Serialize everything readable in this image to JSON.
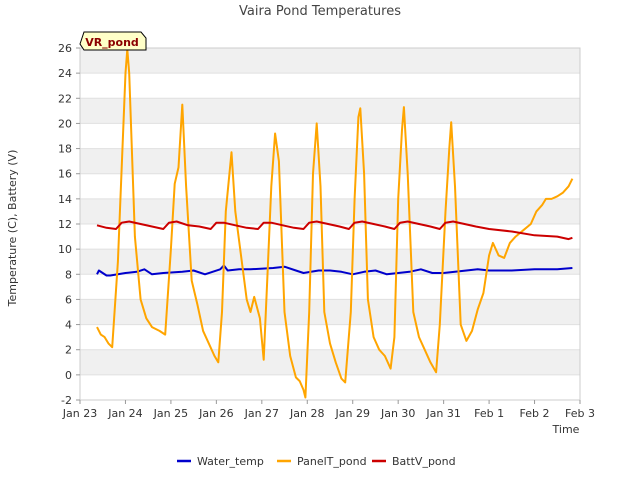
{
  "chart_data": {
    "type": "line",
    "title": "Vaira Pond Temperatures",
    "xlabel": "Time",
    "ylabel": "Temperature (C), Battery (V)",
    "annotation": "VR_pond",
    "xlim": [
      "Jan 23",
      "Feb 3"
    ],
    "ylim": [
      -2,
      26
    ],
    "x_tick_labels": [
      "Jan 23",
      "Jan 24",
      "Jan 25",
      "Jan 26",
      "Jan 27",
      "Jan 28",
      "Jan 29",
      "Jan 30",
      "Jan 31",
      "Feb 1",
      "Feb 2",
      "Feb 3"
    ],
    "y_ticks": [
      -2,
      0,
      2,
      4,
      6,
      8,
      10,
      12,
      14,
      16,
      18,
      20,
      22,
      24,
      26
    ],
    "grid": "horizontal bands",
    "legend_position": "bottom",
    "series": [
      {
        "name": "Water_temp",
        "color": "#0000cc",
        "points": [
          [
            "Jan 23 09:00",
            8.0
          ],
          [
            "Jan 23 10:00",
            8.3
          ],
          [
            "Jan 23 12:00",
            8.1
          ],
          [
            "Jan 23 14:00",
            7.9
          ],
          [
            "Jan 23 16:00",
            7.9
          ],
          [
            "Jan 23 20:00",
            8.0
          ],
          [
            "Jan 24 00:00",
            8.1
          ],
          [
            "Jan 24 06:00",
            8.2
          ],
          [
            "Jan 24 10:00",
            8.4
          ],
          [
            "Jan 24 14:00",
            8.0
          ],
          [
            "Jan 24 20:00",
            8.1
          ],
          [
            "Jan 25 06:00",
            8.2
          ],
          [
            "Jan 25 12:00",
            8.3
          ],
          [
            "Jan 25 18:00",
            8.0
          ],
          [
            "Jan 25 22:00",
            8.2
          ],
          [
            "Jan 26 02:00",
            8.4
          ],
          [
            "Jan 26 04:00",
            8.7
          ],
          [
            "Jan 26 06:00",
            8.3
          ],
          [
            "Jan 26 12:00",
            8.4
          ],
          [
            "Jan 26 18:00",
            8.4
          ],
          [
            "Jan 27 06:00",
            8.5
          ],
          [
            "Jan 27 12:00",
            8.6
          ],
          [
            "Jan 27 18:00",
            8.3
          ],
          [
            "Jan 27 22:00",
            8.1
          ],
          [
            "Jan 28 06:00",
            8.3
          ],
          [
            "Jan 28 12:00",
            8.3
          ],
          [
            "Jan 28 18:00",
            8.2
          ],
          [
            "Jan 29 00:00",
            8.0
          ],
          [
            "Jan 29 06:00",
            8.2
          ],
          [
            "Jan 29 12:00",
            8.3
          ],
          [
            "Jan 29 18:00",
            8.0
          ],
          [
            "Jan 30 00:00",
            8.1
          ],
          [
            "Jan 30 06:00",
            8.2
          ],
          [
            "Jan 30 12:00",
            8.4
          ],
          [
            "Jan 30 18:00",
            8.1
          ],
          [
            "Jan 31 00:00",
            8.1
          ],
          [
            "Jan 31 06:00",
            8.2
          ],
          [
            "Jan 31 12:00",
            8.3
          ],
          [
            "Jan 31 18:00",
            8.4
          ],
          [
            "Feb 1 00:00",
            8.3
          ],
          [
            "Feb 1 12:00",
            8.3
          ],
          [
            "Feb 2 00:00",
            8.4
          ],
          [
            "Feb 2 12:00",
            8.4
          ],
          [
            "Feb 2 20:00",
            8.5
          ]
        ]
      },
      {
        "name": "PanelT_pond",
        "color": "#ffa500",
        "points": [
          [
            "Jan 23 09:00",
            3.8
          ],
          [
            "Jan 23 11:00",
            3.2
          ],
          [
            "Jan 23 13:00",
            3.0
          ],
          [
            "Jan 23 15:00",
            2.5
          ],
          [
            "Jan 23 17:00",
            2.2
          ],
          [
            "Jan 23 20:00",
            9.0
          ],
          [
            "Jan 24 00:00",
            24.0
          ],
          [
            "Jan 24 01:00",
            25.9
          ],
          [
            "Jan 24 02:00",
            24.0
          ],
          [
            "Jan 24 05:00",
            11.0
          ],
          [
            "Jan 24 08:00",
            6.0
          ],
          [
            "Jan 24 11:00",
            4.5
          ],
          [
            "Jan 24 14:00",
            3.8
          ],
          [
            "Jan 24 18:00",
            3.5
          ],
          [
            "Jan 24 21:00",
            3.2
          ],
          [
            "Jan 25 00:00",
            10.0
          ],
          [
            "Jan 25 02:00",
            15.2
          ],
          [
            "Jan 25 04:00",
            16.5
          ],
          [
            "Jan 25 06:00",
            21.5
          ],
          [
            "Jan 25 08:00",
            15.0
          ],
          [
            "Jan 25 11:00",
            7.5
          ],
          [
            "Jan 25 14:00",
            5.6
          ],
          [
            "Jan 25 17:00",
            3.5
          ],
          [
            "Jan 25 20:00",
            2.5
          ],
          [
            "Jan 25 23:00",
            1.5
          ],
          [
            "Jan 26 01:00",
            1.0
          ],
          [
            "Jan 26 03:00",
            5.0
          ],
          [
            "Jan 26 05:00",
            13.0
          ],
          [
            "Jan 26 08:00",
            17.7
          ],
          [
            "Jan 26 10:00",
            13.0
          ],
          [
            "Jan 26 13:00",
            9.5
          ],
          [
            "Jan 26 16:00",
            6.0
          ],
          [
            "Jan 26 18:00",
            5.0
          ],
          [
            "Jan 26 20:00",
            6.2
          ],
          [
            "Jan 26 23:00",
            4.5
          ],
          [
            "Jan 27 01:00",
            1.2
          ],
          [
            "Jan 27 03:00",
            8.0
          ],
          [
            "Jan 27 05:00",
            15.0
          ],
          [
            "Jan 27 07:00",
            19.2
          ],
          [
            "Jan 27 09:00",
            17.0
          ],
          [
            "Jan 27 12:00",
            5.0
          ],
          [
            "Jan 27 15:00",
            1.5
          ],
          [
            "Jan 27 18:00",
            -0.2
          ],
          [
            "Jan 27 20:00",
            -0.5
          ],
          [
            "Jan 27 22:00",
            -1.2
          ],
          [
            "Jan 27 23:00",
            -1.8
          ],
          [
            "Jan 28 01:00",
            5.0
          ],
          [
            "Jan 28 03:00",
            16.0
          ],
          [
            "Jan 28 05:00",
            20.0
          ],
          [
            "Jan 28 07:00",
            15.0
          ],
          [
            "Jan 28 09:00",
            5.0
          ],
          [
            "Jan 28 12:00",
            2.5
          ],
          [
            "Jan 28 15:00",
            1.0
          ],
          [
            "Jan 28 18:00",
            -0.3
          ],
          [
            "Jan 28 20:00",
            -0.6
          ],
          [
            "Jan 28 23:00",
            5.0
          ],
          [
            "Jan 29 01:00",
            14.0
          ],
          [
            "Jan 29 03:00",
            20.5
          ],
          [
            "Jan 29 04:00",
            21.2
          ],
          [
            "Jan 29 06:00",
            16.0
          ],
          [
            "Jan 29 08:00",
            6.0
          ],
          [
            "Jan 29 11:00",
            3.0
          ],
          [
            "Jan 29 14:00",
            2.0
          ],
          [
            "Jan 29 17:00",
            1.5
          ],
          [
            "Jan 29 20:00",
            0.5
          ],
          [
            "Jan 29 22:00",
            3.0
          ],
          [
            "Jan 30 00:00",
            14.0
          ],
          [
            "Jan 30 02:00",
            19.5
          ],
          [
            "Jan 30 03:00",
            21.3
          ],
          [
            "Jan 30 05:00",
            16.0
          ],
          [
            "Jan 30 08:00",
            5.0
          ],
          [
            "Jan 30 11:00",
            3.0
          ],
          [
            "Jan 30 14:00",
            2.0
          ],
          [
            "Jan 30 17:00",
            1.0
          ],
          [
            "Jan 30 20:00",
            0.2
          ],
          [
            "Jan 30 22:00",
            4.0
          ],
          [
            "Jan 31 01:00",
            13.0
          ],
          [
            "Jan 31 03:00",
            18.0
          ],
          [
            "Jan 31 04:00",
            20.1
          ],
          [
            "Jan 31 06:00",
            15.0
          ],
          [
            "Jan 31 09:00",
            4.0
          ],
          [
            "Jan 31 12:00",
            2.7
          ],
          [
            "Jan 31 15:00",
            3.5
          ],
          [
            "Jan 31 18:00",
            5.2
          ],
          [
            "Jan 31 21:00",
            6.5
          ],
          [
            "Feb 1 00:00",
            9.5
          ],
          [
            "Feb 1 02:00",
            10.5
          ],
          [
            "Feb 1 05:00",
            9.5
          ],
          [
            "Feb 1 08:00",
            9.3
          ],
          [
            "Feb 1 11:00",
            10.5
          ],
          [
            "Feb 1 14:00",
            11.0
          ],
          [
            "Feb 1 18:00",
            11.5
          ],
          [
            "Feb 1 22:00",
            12.0
          ],
          [
            "Feb 2 01:00",
            13.0
          ],
          [
            "Feb 2 04:00",
            13.5
          ],
          [
            "Feb 2 06:00",
            14.0
          ],
          [
            "Feb 2 09:00",
            14.0
          ],
          [
            "Feb 2 12:00",
            14.2
          ],
          [
            "Feb 2 15:00",
            14.5
          ],
          [
            "Feb 2 18:00",
            15.0
          ],
          [
            "Feb 2 20:00",
            15.6
          ]
        ]
      },
      {
        "name": "BattV_pond",
        "color": "#cc0000",
        "points": [
          [
            "Jan 23 09:00",
            11.9
          ],
          [
            "Jan 23 14:00",
            11.7
          ],
          [
            "Jan 23 19:00",
            11.6
          ],
          [
            "Jan 23 22:00",
            12.1
          ],
          [
            "Jan 24 02:00",
            12.2
          ],
          [
            "Jan 24 08:00",
            12.0
          ],
          [
            "Jan 24 14:00",
            11.8
          ],
          [
            "Jan 24 20:00",
            11.6
          ],
          [
            "Jan 24 23:00",
            12.1
          ],
          [
            "Jan 25 03:00",
            12.2
          ],
          [
            "Jan 25 09:00",
            11.9
          ],
          [
            "Jan 25 15:00",
            11.8
          ],
          [
            "Jan 25 21:00",
            11.6
          ],
          [
            "Jan 26 00:00",
            12.1
          ],
          [
            "Jan 26 04:00",
            12.1
          ],
          [
            "Jan 26 10:00",
            11.9
          ],
          [
            "Jan 26 16:00",
            11.7
          ],
          [
            "Jan 26 22:00",
            11.6
          ],
          [
            "Jan 27 01:00",
            12.1
          ],
          [
            "Jan 27 05:00",
            12.1
          ],
          [
            "Jan 27 11:00",
            11.9
          ],
          [
            "Jan 27 17:00",
            11.7
          ],
          [
            "Jan 27 22:00",
            11.6
          ],
          [
            "Jan 28 01:00",
            12.1
          ],
          [
            "Jan 28 05:00",
            12.2
          ],
          [
            "Jan 28 11:00",
            12.0
          ],
          [
            "Jan 28 17:00",
            11.8
          ],
          [
            "Jan 28 22:00",
            11.6
          ],
          [
            "Jan 29 01:00",
            12.1
          ],
          [
            "Jan 29 05:00",
            12.2
          ],
          [
            "Jan 29 11:00",
            12.0
          ],
          [
            "Jan 29 17:00",
            11.8
          ],
          [
            "Jan 29 22:00",
            11.6
          ],
          [
            "Jan 30 01:00",
            12.1
          ],
          [
            "Jan 30 05:00",
            12.2
          ],
          [
            "Jan 30 11:00",
            12.0
          ],
          [
            "Jan 30 17:00",
            11.8
          ],
          [
            "Jan 30 22:00",
            11.6
          ],
          [
            "Jan 31 01:00",
            12.1
          ],
          [
            "Jan 31 05:00",
            12.2
          ],
          [
            "Jan 31 11:00",
            12.0
          ],
          [
            "Jan 31 17:00",
            11.8
          ],
          [
            "Feb 1 00:00",
            11.6
          ],
          [
            "Feb 1 12:00",
            11.4
          ],
          [
            "Feb 2 00:00",
            11.1
          ],
          [
            "Feb 2 12:00",
            11.0
          ],
          [
            "Feb 2 18:00",
            10.8
          ],
          [
            "Feb 2 20:00",
            10.9
          ]
        ]
      }
    ]
  }
}
